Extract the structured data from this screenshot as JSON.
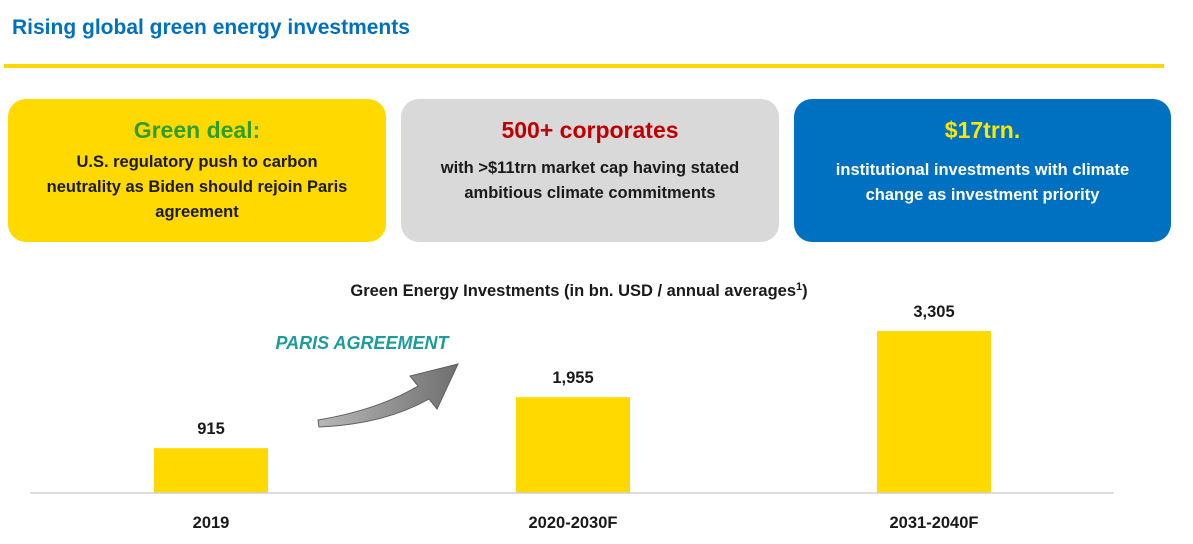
{
  "page": {
    "title": "Rising global green energy investments"
  },
  "cards": [
    {
      "headline": "Green deal:",
      "body": "U.S. regulatory push to carbon neutrality as Biden should rejoin Paris agreement"
    },
    {
      "headline": "500+ corporates",
      "body": "with >$11trn market cap having stated ambitious climate commitments"
    },
    {
      "headline": "$17trn.",
      "body": "institutional investments with climate change as investment priority"
    }
  ],
  "colors": {
    "brand_blue": "#0070C0",
    "accent_yellow": "#FFD900",
    "card_gray": "#D9D9D9",
    "green_text": "#2E9E2E",
    "red_text": "#C00000",
    "annotation_teal": "#1E9B9B"
  },
  "chart_data": {
    "type": "bar",
    "title": "Green Energy Investments (in bn. USD / annual averages",
    "title_superscript": "1",
    "title_suffix": ")",
    "categories": [
      "2019",
      "2020-2030F",
      "2031-2040F"
    ],
    "values": [
      915,
      1955,
      3305
    ],
    "value_labels": [
      "915",
      "1,955",
      "3,305"
    ],
    "ylim": [
      0,
      3305
    ],
    "grid": false,
    "legend": "none",
    "bar_color": "#FFD900",
    "annotation": {
      "text": "PARIS AGREEMENT",
      "icon": "curved-arrow-icon"
    }
  }
}
